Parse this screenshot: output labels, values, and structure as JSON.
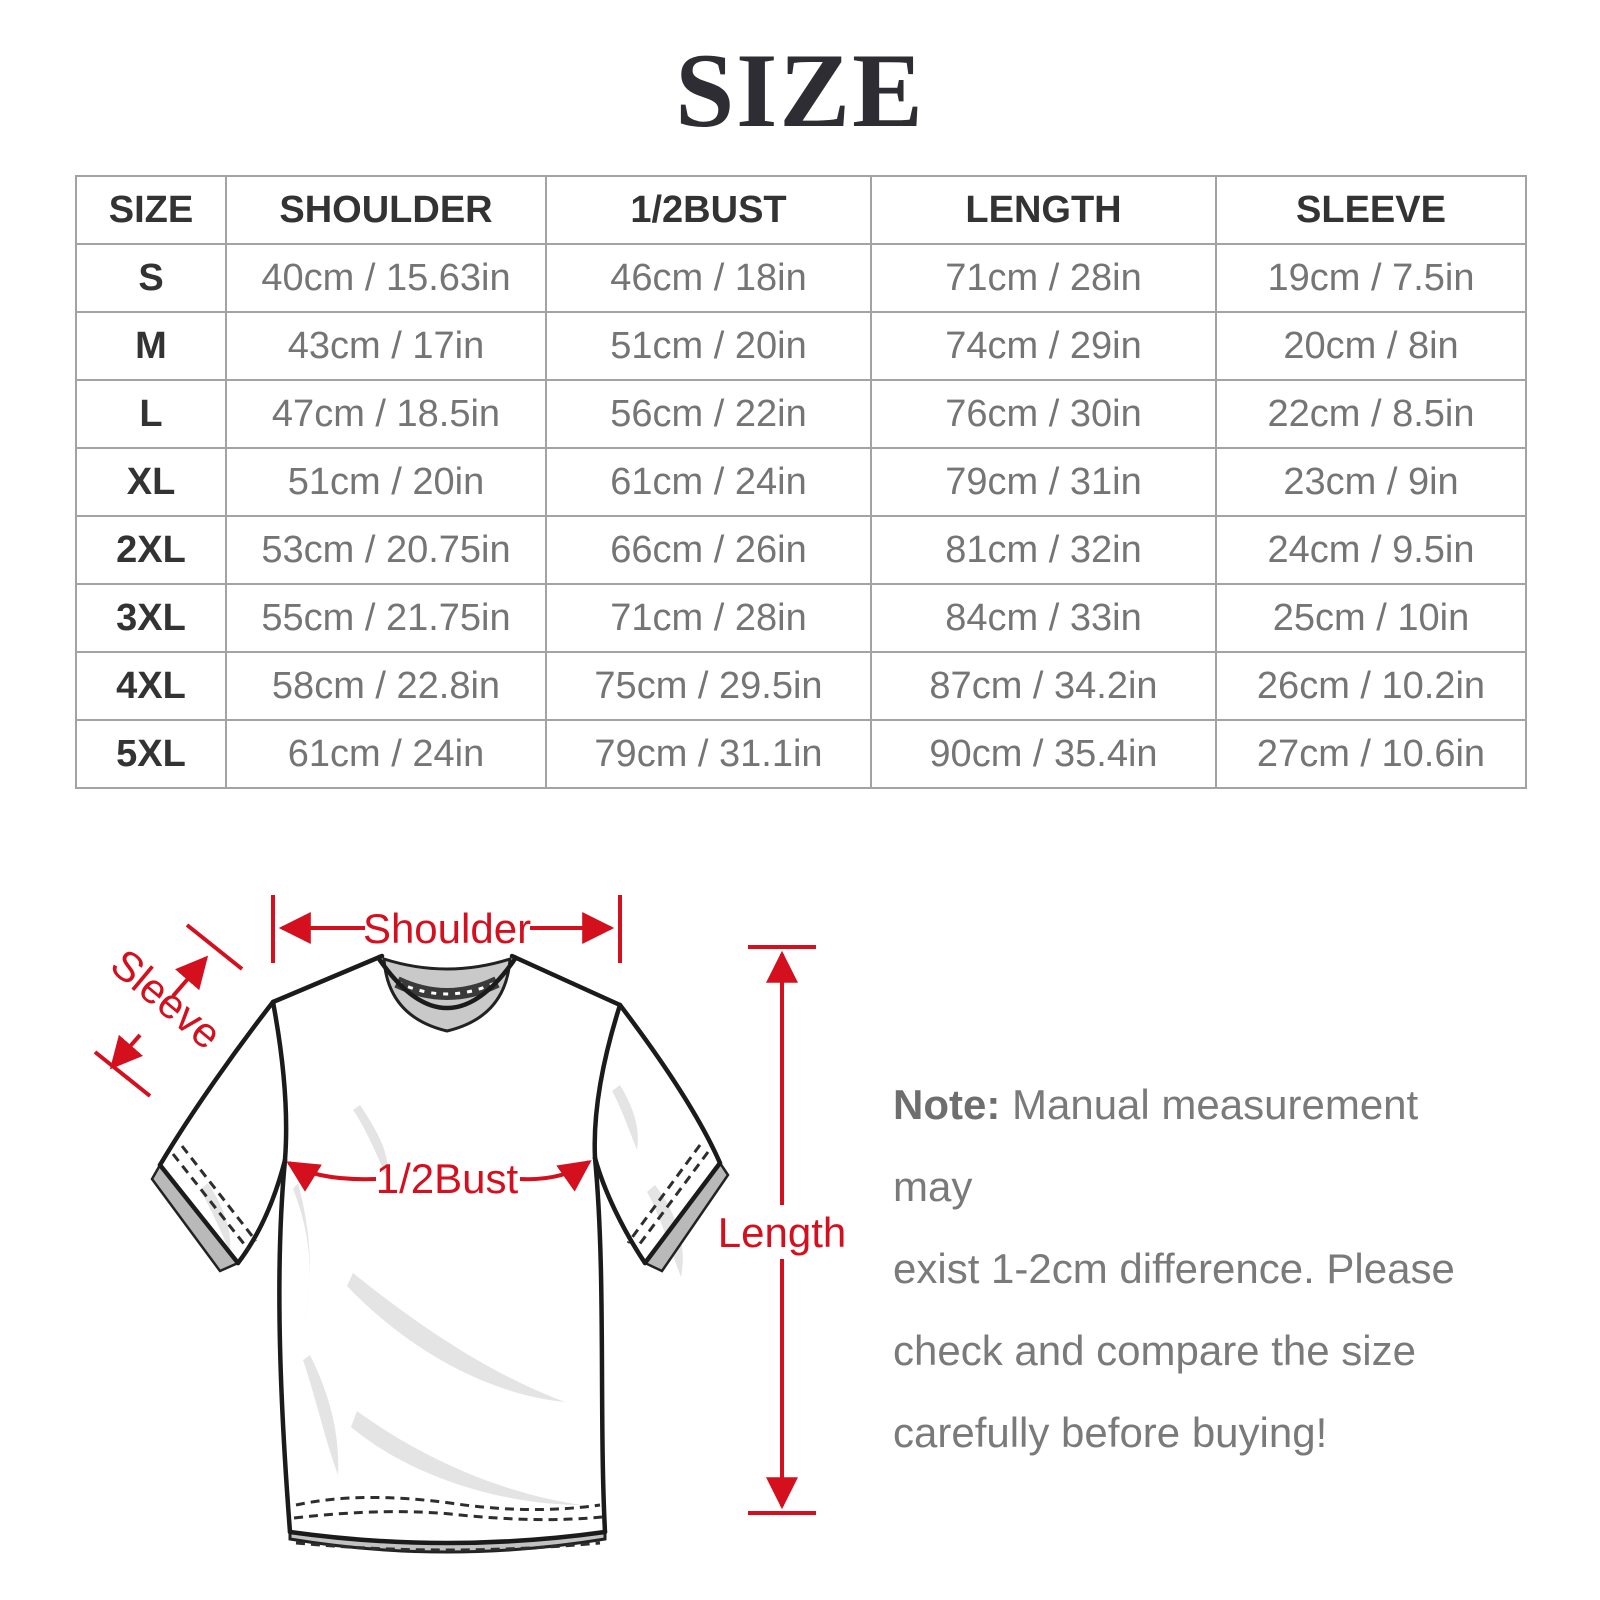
{
  "page": {
    "title": "SIZE"
  },
  "colors": {
    "accent_red": "#d4101f",
    "title_dark": "#2d2d33",
    "table_text_dark": "#333333",
    "table_text_gray": "#757575",
    "table_border": "#a3a3a3",
    "note_gray": "#7a7a7a"
  },
  "table": {
    "headers": [
      "SIZE",
      "SHOULDER",
      "1/2BUST",
      "LENGTH",
      "SLEEVE"
    ],
    "rows": [
      {
        "size": "S",
        "values": [
          "40cm / 15.63in",
          "46cm / 18in",
          "71cm / 28in",
          "19cm / 7.5in"
        ]
      },
      {
        "size": "M",
        "values": [
          "43cm / 17in",
          "51cm / 20in",
          "74cm / 29in",
          "20cm / 8in"
        ]
      },
      {
        "size": "L",
        "values": [
          "47cm / 18.5in",
          "56cm / 22in",
          "76cm / 30in",
          "22cm / 8.5in"
        ]
      },
      {
        "size": "XL",
        "values": [
          "51cm / 20in",
          "61cm / 24in",
          "79cm / 31in",
          "23cm / 9in"
        ]
      },
      {
        "size": "2XL",
        "values": [
          "53cm / 20.75in",
          "66cm / 26in",
          "81cm / 32in",
          "24cm / 9.5in"
        ]
      },
      {
        "size": "3XL",
        "values": [
          "55cm / 21.75in",
          "71cm / 28in",
          "84cm / 33in",
          "25cm / 10in"
        ]
      },
      {
        "size": "4XL",
        "values": [
          "58cm / 22.8in",
          "75cm / 29.5in",
          "87cm / 34.2in",
          "26cm / 10.2in"
        ]
      },
      {
        "size": "5XL",
        "values": [
          "61cm / 24in",
          "79cm / 31.1in",
          "90cm / 35.4in",
          "27cm / 10.6in"
        ]
      }
    ]
  },
  "diagram": {
    "labels": {
      "shoulder": "Shoulder",
      "sleeve": "Sleeve",
      "half_bust": "1/2Bust",
      "length": "Length"
    }
  },
  "note": {
    "prefix": "Note:",
    "lines": [
      "Manual measurement may",
      "exist 1-2cm difference. Please",
      "check and compare the size",
      "carefully before buying!"
    ]
  }
}
